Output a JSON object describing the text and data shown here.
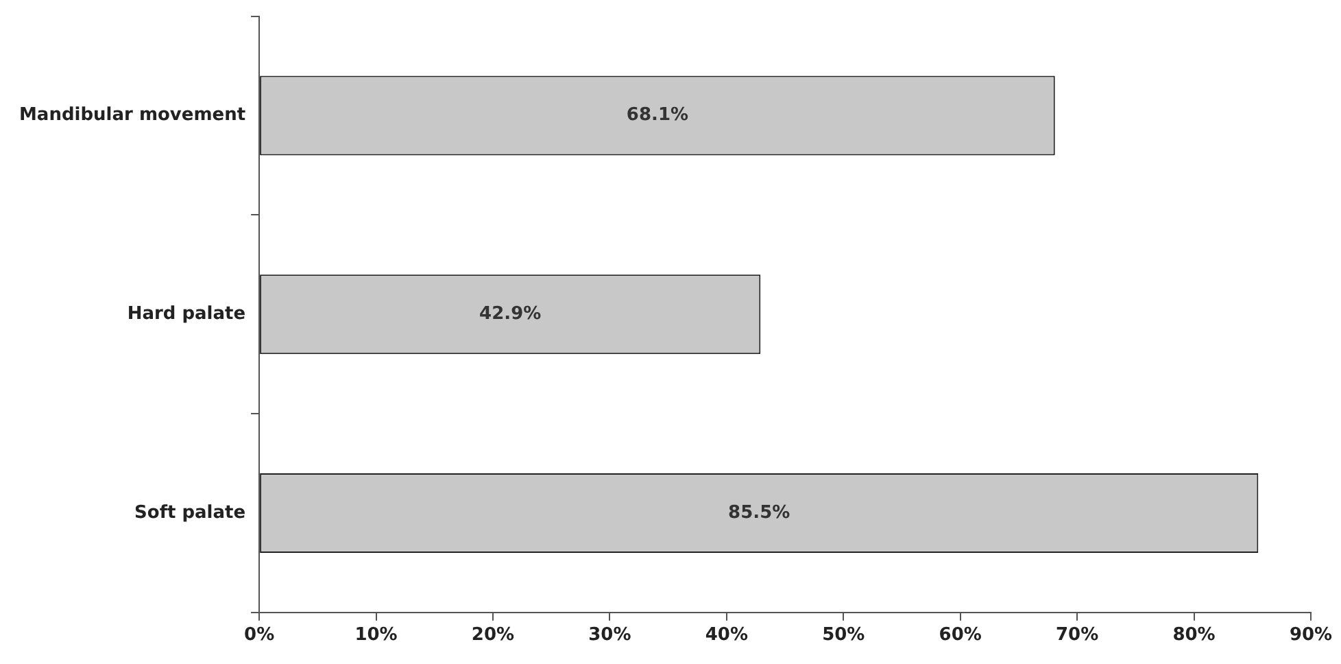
{
  "chart_data": {
    "type": "bar",
    "orientation": "horizontal",
    "categories": [
      "Mandibular movement",
      "Hard palate",
      "Soft palate"
    ],
    "values": [
      68.1,
      42.9,
      85.5
    ],
    "value_labels": [
      "68.1%",
      "42.9%",
      "85.5%"
    ],
    "color": "#c8c8c8",
    "xlim": [
      0,
      90
    ],
    "xticks": [
      {
        "value": 0,
        "label": "0%"
      },
      {
        "value": 10,
        "label": "10%"
      },
      {
        "value": 20,
        "label": "20%"
      },
      {
        "value": 30,
        "label": "30%"
      },
      {
        "value": 40,
        "label": "40%"
      },
      {
        "value": 50,
        "label": "50%"
      },
      {
        "value": 60,
        "label": "60%"
      },
      {
        "value": 70,
        "label": "70%"
      },
      {
        "value": 80,
        "label": "80%"
      },
      {
        "value": 90,
        "label": "90%"
      }
    ],
    "grid": false,
    "legend": false
  }
}
